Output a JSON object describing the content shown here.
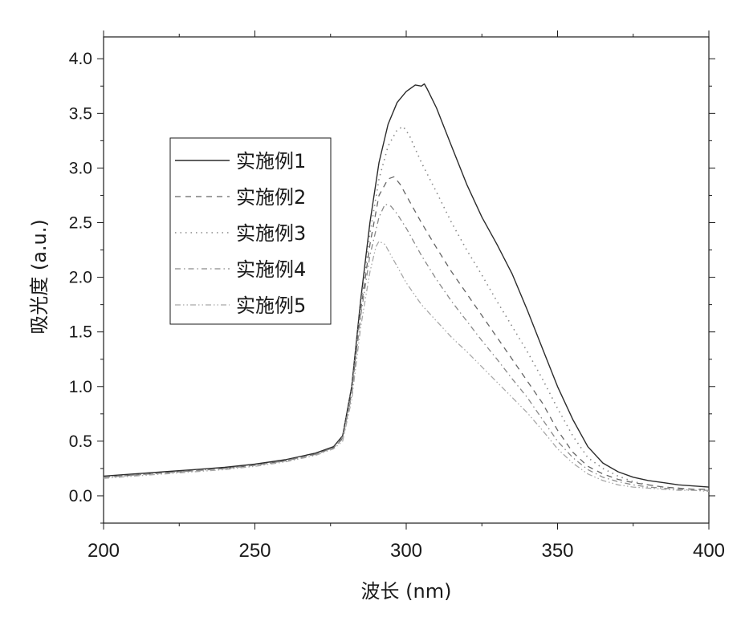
{
  "chart_data": {
    "type": "line",
    "title": "",
    "xlabel": "波长 (nm)",
    "ylabel": "吸光度 (a.u.)",
    "xlim": [
      200,
      400
    ],
    "ylim": [
      -0.25,
      4.2
    ],
    "x_ticks": [
      200,
      250,
      300,
      350,
      400
    ],
    "x_tick_labels": [
      "200",
      "250",
      "300",
      "350",
      "400"
    ],
    "y_ticks": [
      0.0,
      0.5,
      1.0,
      1.5,
      2.0,
      2.5,
      3.0,
      3.5,
      4.0
    ],
    "y_tick_labels": [
      "0.0",
      "0.5",
      "1.0",
      "1.5",
      "2.0",
      "2.5",
      "3.0",
      "3.5",
      "4.0"
    ],
    "grid": false,
    "legend_position": "upper-left",
    "series": [
      {
        "name": "实施例1",
        "line_style": "solid",
        "points": [
          [
            200,
            0.18
          ],
          [
            210,
            0.2
          ],
          [
            220,
            0.22
          ],
          [
            230,
            0.24
          ],
          [
            240,
            0.26
          ],
          [
            250,
            0.29
          ],
          [
            260,
            0.33
          ],
          [
            270,
            0.39
          ],
          [
            276,
            0.45
          ],
          [
            279,
            0.55
          ],
          [
            282,
            1.0
          ],
          [
            285,
            1.8
          ],
          [
            288,
            2.5
          ],
          [
            291,
            3.05
          ],
          [
            294,
            3.4
          ],
          [
            297,
            3.6
          ],
          [
            300,
            3.7
          ],
          [
            303,
            3.76
          ],
          [
            305,
            3.75
          ],
          [
            306,
            3.77
          ],
          [
            307,
            3.72
          ],
          [
            310,
            3.55
          ],
          [
            315,
            3.2
          ],
          [
            320,
            2.85
          ],
          [
            325,
            2.55
          ],
          [
            330,
            2.3
          ],
          [
            335,
            2.03
          ],
          [
            340,
            1.7
          ],
          [
            345,
            1.35
          ],
          [
            350,
            1.0
          ],
          [
            355,
            0.7
          ],
          [
            360,
            0.45
          ],
          [
            365,
            0.3
          ],
          [
            370,
            0.22
          ],
          [
            375,
            0.17
          ],
          [
            380,
            0.14
          ],
          [
            385,
            0.12
          ],
          [
            390,
            0.1
          ],
          [
            395,
            0.09
          ],
          [
            400,
            0.08
          ]
        ]
      },
      {
        "name": "实施例2",
        "line_style": "dashed",
        "points": [
          [
            200,
            0.17
          ],
          [
            210,
            0.19
          ],
          [
            220,
            0.21
          ],
          [
            230,
            0.23
          ],
          [
            240,
            0.25
          ],
          [
            250,
            0.28
          ],
          [
            260,
            0.32
          ],
          [
            270,
            0.38
          ],
          [
            276,
            0.44
          ],
          [
            279,
            0.53
          ],
          [
            282,
            0.95
          ],
          [
            285,
            1.7
          ],
          [
            288,
            2.3
          ],
          [
            291,
            2.75
          ],
          [
            294,
            2.9
          ],
          [
            296,
            2.92
          ],
          [
            298,
            2.85
          ],
          [
            300,
            2.75
          ],
          [
            305,
            2.5
          ],
          [
            310,
            2.27
          ],
          [
            315,
            2.05
          ],
          [
            320,
            1.85
          ],
          [
            325,
            1.65
          ],
          [
            330,
            1.45
          ],
          [
            335,
            1.25
          ],
          [
            340,
            1.05
          ],
          [
            345,
            0.85
          ],
          [
            350,
            0.6
          ],
          [
            355,
            0.4
          ],
          [
            360,
            0.27
          ],
          [
            365,
            0.2
          ],
          [
            370,
            0.15
          ],
          [
            375,
            0.12
          ],
          [
            380,
            0.1
          ],
          [
            385,
            0.08
          ],
          [
            390,
            0.07
          ],
          [
            395,
            0.06
          ],
          [
            400,
            0.06
          ]
        ]
      },
      {
        "name": "实施例3",
        "line_style": "dotted",
        "points": [
          [
            200,
            0.17
          ],
          [
            210,
            0.19
          ],
          [
            220,
            0.21
          ],
          [
            230,
            0.23
          ],
          [
            240,
            0.25
          ],
          [
            250,
            0.28
          ],
          [
            260,
            0.32
          ],
          [
            270,
            0.38
          ],
          [
            276,
            0.44
          ],
          [
            279,
            0.54
          ],
          [
            282,
            0.98
          ],
          [
            285,
            1.75
          ],
          [
            288,
            2.4
          ],
          [
            291,
            2.9
          ],
          [
            294,
            3.2
          ],
          [
            297,
            3.35
          ],
          [
            299,
            3.38
          ],
          [
            301,
            3.3
          ],
          [
            305,
            3.05
          ],
          [
            310,
            2.78
          ],
          [
            315,
            2.5
          ],
          [
            320,
            2.25
          ],
          [
            325,
            2.02
          ],
          [
            330,
            1.78
          ],
          [
            335,
            1.55
          ],
          [
            340,
            1.32
          ],
          [
            345,
            1.07
          ],
          [
            350,
            0.8
          ],
          [
            355,
            0.55
          ],
          [
            360,
            0.35
          ],
          [
            365,
            0.25
          ],
          [
            370,
            0.18
          ],
          [
            375,
            0.13
          ],
          [
            380,
            0.1
          ],
          [
            385,
            0.08
          ],
          [
            390,
            0.07
          ],
          [
            395,
            0.06
          ],
          [
            400,
            0.06
          ]
        ]
      },
      {
        "name": "实施例4",
        "line_style": "dash-dot",
        "points": [
          [
            200,
            0.17
          ],
          [
            210,
            0.19
          ],
          [
            220,
            0.21
          ],
          [
            230,
            0.23
          ],
          [
            240,
            0.25
          ],
          [
            250,
            0.28
          ],
          [
            260,
            0.32
          ],
          [
            270,
            0.38
          ],
          [
            276,
            0.44
          ],
          [
            279,
            0.52
          ],
          [
            282,
            0.92
          ],
          [
            285,
            1.65
          ],
          [
            288,
            2.2
          ],
          [
            291,
            2.55
          ],
          [
            293,
            2.67
          ],
          [
            295,
            2.65
          ],
          [
            297,
            2.58
          ],
          [
            300,
            2.45
          ],
          [
            305,
            2.2
          ],
          [
            310,
            1.98
          ],
          [
            315,
            1.78
          ],
          [
            320,
            1.6
          ],
          [
            325,
            1.42
          ],
          [
            330,
            1.25
          ],
          [
            335,
            1.07
          ],
          [
            340,
            0.9
          ],
          [
            345,
            0.7
          ],
          [
            350,
            0.5
          ],
          [
            355,
            0.35
          ],
          [
            360,
            0.24
          ],
          [
            365,
            0.17
          ],
          [
            370,
            0.13
          ],
          [
            375,
            0.1
          ],
          [
            380,
            0.08
          ],
          [
            385,
            0.07
          ],
          [
            390,
            0.06
          ],
          [
            395,
            0.05
          ],
          [
            400,
            0.05
          ]
        ]
      },
      {
        "name": "实施例5",
        "line_style": "dash-dot-dot",
        "points": [
          [
            200,
            0.16
          ],
          [
            210,
            0.18
          ],
          [
            220,
            0.2
          ],
          [
            230,
            0.22
          ],
          [
            240,
            0.24
          ],
          [
            250,
            0.27
          ],
          [
            260,
            0.31
          ],
          [
            270,
            0.37
          ],
          [
            276,
            0.43
          ],
          [
            279,
            0.5
          ],
          [
            282,
            0.88
          ],
          [
            285,
            1.55
          ],
          [
            288,
            2.05
          ],
          [
            290,
            2.28
          ],
          [
            291,
            2.33
          ],
          [
            293,
            2.3
          ],
          [
            295,
            2.2
          ],
          [
            298,
            2.05
          ],
          [
            300,
            1.95
          ],
          [
            305,
            1.75
          ],
          [
            310,
            1.6
          ],
          [
            315,
            1.45
          ],
          [
            320,
            1.32
          ],
          [
            325,
            1.18
          ],
          [
            330,
            1.04
          ],
          [
            335,
            0.9
          ],
          [
            340,
            0.76
          ],
          [
            345,
            0.6
          ],
          [
            350,
            0.43
          ],
          [
            355,
            0.3
          ],
          [
            360,
            0.2
          ],
          [
            365,
            0.14
          ],
          [
            370,
            0.1
          ],
          [
            375,
            0.08
          ],
          [
            380,
            0.07
          ],
          [
            385,
            0.06
          ],
          [
            390,
            0.05
          ],
          [
            395,
            0.05
          ],
          [
            400,
            0.04
          ]
        ]
      }
    ]
  },
  "colors": {
    "axis": "#1a1a1a",
    "solid": "#2b2b2b",
    "dashed": "#666666",
    "dotted": "#888888",
    "dash_dot": "#8a8a8a",
    "dash_dot_dot": "#a8a8a8"
  }
}
